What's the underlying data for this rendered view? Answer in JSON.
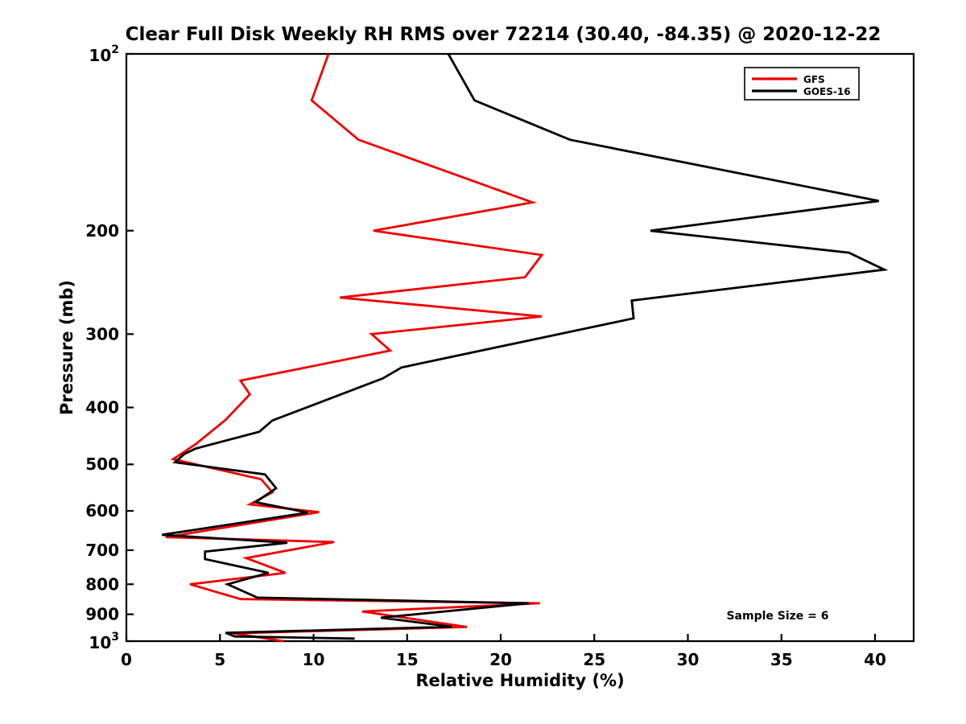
{
  "figure": {
    "background": "#ffffff",
    "title": "Clear Full Disk Weekly RH RMS over 72214 (30.40, -84.35) @ 2020-12-22"
  },
  "chart_data": {
    "type": "line",
    "title": "Clear Full Disk Weekly RH RMS over 72214 (30.40, -84.35) @ 2020-12-22",
    "xlabel": "Relative Humidity (%)",
    "ylabel": "Pressure (mb)",
    "xlim": [
      0,
      40
    ],
    "x_ticks": [
      0,
      5,
      10,
      15,
      20,
      25,
      30,
      35,
      40
    ],
    "ylim": [
      100,
      1000
    ],
    "y_scale": "log-inverted",
    "y_ticks": [
      {
        "label": "10^2",
        "value": 100
      },
      {
        "label": "200",
        "value": 200
      },
      {
        "label": "300",
        "value": 300
      },
      {
        "label": "400",
        "value": 400
      },
      {
        "label": "500",
        "value": 500
      },
      {
        "label": "600",
        "value": 600
      },
      {
        "label": "700",
        "value": 700
      },
      {
        "label": "800",
        "value": 800
      },
      {
        "label": "900",
        "value": 900
      },
      {
        "label": "10^3",
        "value": 1000
      }
    ],
    "grid": false,
    "annotation": "Sample Size = 6",
    "legend": {
      "position": "top-right",
      "entries": [
        {
          "label": "GFS",
          "color": "#ee0000"
        },
        {
          "label": "GOES-16",
          "color": "#000000"
        }
      ]
    },
    "series": [
      {
        "name": "GFS",
        "color": "#ee0000",
        "points_rh_pressure": [
          [
            10.8,
            100
          ],
          [
            9.9,
            120
          ],
          [
            12.4,
            140
          ],
          [
            21.7,
            179
          ],
          [
            13.2,
            200
          ],
          [
            22.2,
            220
          ],
          [
            21.3,
            240
          ],
          [
            11.4,
            260
          ],
          [
            22.2,
            280
          ],
          [
            13.1,
            300
          ],
          [
            14.1,
            320
          ],
          [
            6.1,
            360
          ],
          [
            6.6,
            380
          ],
          [
            5.3,
            420
          ],
          [
            3.7,
            462
          ],
          [
            2.5,
            490
          ],
          [
            7.2,
            530
          ],
          [
            7.8,
            558
          ],
          [
            6.6,
            585
          ],
          [
            10.3,
            603
          ],
          [
            2.1,
            665
          ],
          [
            11.1,
            678
          ],
          [
            6.4,
            722
          ],
          [
            8.5,
            765
          ],
          [
            3.4,
            800
          ],
          [
            6.1,
            848
          ],
          [
            22.1,
            862
          ],
          [
            12.6,
            890
          ],
          [
            18.2,
            946
          ],
          [
            5.7,
            970
          ],
          [
            8.4,
            1000
          ]
        ]
      },
      {
        "name": "GOES-16",
        "color": "#000000",
        "points_rh_pressure": [
          [
            17.2,
            100
          ],
          [
            18.6,
            120
          ],
          [
            23.7,
            140
          ],
          [
            32.0,
            158
          ],
          [
            40.2,
            178
          ],
          [
            28.0,
            200
          ],
          [
            38.6,
            218
          ],
          [
            40.5,
            233
          ],
          [
            27.0,
            263
          ],
          [
            27.1,
            282
          ],
          [
            14.7,
            342
          ],
          [
            13.7,
            357
          ],
          [
            7.8,
            421
          ],
          [
            7.1,
            440
          ],
          [
            3.7,
            470
          ],
          [
            3.1,
            480
          ],
          [
            2.6,
            496
          ],
          [
            7.4,
            520
          ],
          [
            8.0,
            549
          ],
          [
            6.9,
            580
          ],
          [
            9.7,
            604
          ],
          [
            1.9,
            659
          ],
          [
            8.6,
            680
          ],
          [
            4.2,
            704
          ],
          [
            4.2,
            725
          ],
          [
            7.6,
            765
          ],
          [
            5.4,
            800
          ],
          [
            7.0,
            843
          ],
          [
            21.5,
            862
          ],
          [
            13.6,
            912
          ],
          [
            17.4,
            945
          ],
          [
            5.3,
            968
          ],
          [
            5.8,
            982
          ],
          [
            12.2,
            990
          ]
        ]
      }
    ]
  }
}
